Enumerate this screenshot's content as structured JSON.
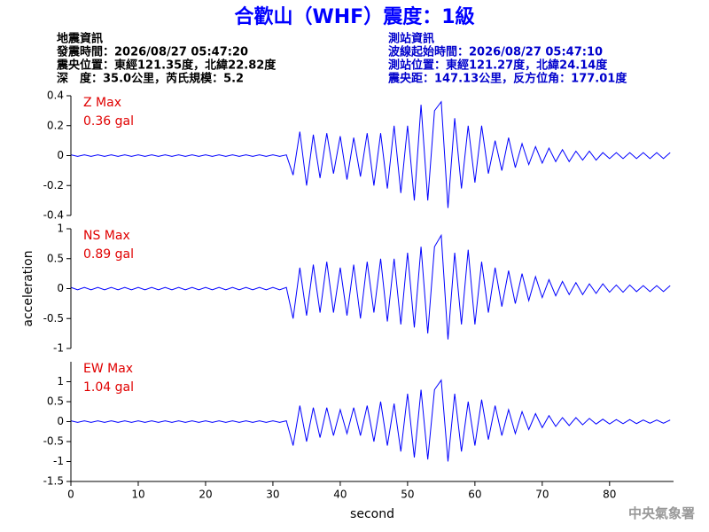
{
  "header": {
    "title": "合歡山（WHF）震度：1級",
    "left_info": [
      "地震資訊",
      "發震時間：2026/08/27 05:47:20",
      "震央位置：東經121.35度，北緯22.82度",
      "深　度：35.0公里，芮氏規模：5.2"
    ],
    "right_info": [
      "測站資訊",
      "波線起始時間：2026/08/27 05:47:10",
      "測站位置：東經121.27度，北緯24.14度",
      "震央距：147.13公里，反方位角：177.01度"
    ]
  },
  "footer": "中央氣象署",
  "chart_data": [
    {
      "type": "line",
      "annotations": [
        "Z Max",
        "0.36 gal"
      ],
      "color": "#0000ff",
      "xlim": [
        0,
        89.5
      ],
      "ylim": [
        -0.4,
        0.4
      ],
      "yticks": [
        -0.4,
        -0.2,
        0,
        0.2,
        0.4
      ],
      "x": [
        0,
        1,
        2,
        3,
        4,
        5,
        6,
        7,
        8,
        9,
        10,
        11,
        12,
        13,
        14,
        15,
        16,
        17,
        18,
        19,
        20,
        21,
        22,
        23,
        24,
        25,
        26,
        27,
        28,
        29,
        30,
        31,
        32,
        33,
        34,
        35,
        36,
        37,
        38,
        39,
        40,
        41,
        42,
        43,
        44,
        45,
        46,
        47,
        48,
        49,
        50,
        51,
        52,
        53,
        54,
        55,
        56,
        57,
        58,
        59,
        60,
        61,
        62,
        63,
        64,
        65,
        66,
        67,
        68,
        69,
        70,
        71,
        72,
        73,
        74,
        75,
        76,
        77,
        78,
        79,
        80,
        81,
        82,
        83,
        84,
        85,
        86,
        87,
        88,
        89
      ],
      "values": [
        0.005,
        -0.005,
        0.005,
        -0.005,
        0.005,
        -0.005,
        0.005,
        -0.005,
        0.005,
        -0.005,
        0.005,
        -0.005,
        0.005,
        -0.005,
        0.005,
        -0.005,
        0.005,
        -0.005,
        0.005,
        -0.005,
        0.005,
        -0.005,
        0.005,
        -0.005,
        0.005,
        -0.005,
        0.005,
        -0.005,
        0.005,
        -0.005,
        0.005,
        -0.005,
        0.005,
        -0.13,
        0.16,
        -0.2,
        0.14,
        -0.15,
        0.15,
        -0.12,
        0.13,
        -0.16,
        0.12,
        -0.14,
        0.15,
        -0.2,
        0.15,
        -0.22,
        0.2,
        -0.25,
        0.2,
        -0.3,
        0.34,
        -0.3,
        0.3,
        0.36,
        -0.35,
        0.25,
        -0.22,
        0.2,
        -0.18,
        0.2,
        -0.12,
        0.1,
        -0.1,
        0.12,
        -0.08,
        0.08,
        -0.06,
        0.06,
        -0.05,
        0.05,
        -0.04,
        0.04,
        -0.04,
        0.03,
        -0.03,
        0.03,
        -0.03,
        0.02,
        -0.02,
        0.02,
        -0.02,
        0.02,
        -0.02,
        0.02,
        -0.02,
        0.02,
        -0.02,
        0.02
      ]
    },
    {
      "type": "line",
      "annotations": [
        "NS Max",
        "0.89 gal"
      ],
      "color": "#0000ff",
      "ylabel": "acceleration",
      "xlim": [
        0,
        89.5
      ],
      "ylim": [
        -1,
        1
      ],
      "yticks": [
        -1,
        -0.5,
        0,
        0.5,
        1
      ],
      "x": [
        0,
        1,
        2,
        3,
        4,
        5,
        6,
        7,
        8,
        9,
        10,
        11,
        12,
        13,
        14,
        15,
        16,
        17,
        18,
        19,
        20,
        21,
        22,
        23,
        24,
        25,
        26,
        27,
        28,
        29,
        30,
        31,
        32,
        33,
        34,
        35,
        36,
        37,
        38,
        39,
        40,
        41,
        42,
        43,
        44,
        45,
        46,
        47,
        48,
        49,
        50,
        51,
        52,
        53,
        54,
        55,
        56,
        57,
        58,
        59,
        60,
        61,
        62,
        63,
        64,
        65,
        66,
        67,
        68,
        69,
        70,
        71,
        72,
        73,
        74,
        75,
        76,
        77,
        78,
        79,
        80,
        81,
        82,
        83,
        84,
        85,
        86,
        87,
        88,
        89
      ],
      "values": [
        0.02,
        -0.02,
        0.02,
        -0.02,
        0.02,
        -0.02,
        0.02,
        -0.02,
        0.02,
        -0.02,
        0.02,
        -0.02,
        0.02,
        -0.02,
        0.02,
        -0.02,
        0.02,
        -0.02,
        0.02,
        -0.02,
        0.02,
        -0.02,
        0.02,
        -0.02,
        0.02,
        -0.02,
        0.02,
        -0.02,
        0.02,
        -0.02,
        0.02,
        -0.02,
        0.02,
        -0.5,
        0.35,
        -0.45,
        0.4,
        -0.4,
        0.45,
        -0.4,
        0.35,
        -0.45,
        0.4,
        -0.5,
        0.45,
        -0.4,
        0.5,
        -0.55,
        0.5,
        -0.6,
        0.6,
        -0.65,
        0.7,
        -0.75,
        0.7,
        0.89,
        -0.85,
        0.6,
        -0.6,
        0.65,
        -0.6,
        0.45,
        -0.4,
        0.35,
        -0.3,
        0.3,
        -0.25,
        0.25,
        -0.2,
        0.2,
        -0.15,
        0.15,
        -0.12,
        0.12,
        -0.1,
        0.1,
        -0.1,
        0.08,
        -0.08,
        0.08,
        -0.06,
        0.06,
        -0.06,
        0.06,
        -0.05,
        0.05,
        -0.05,
        0.05,
        -0.05,
        0.05
      ]
    },
    {
      "type": "line",
      "annotations": [
        "EW Max",
        "1.04 gal"
      ],
      "color": "#0000ff",
      "xlabel": "second",
      "xlim": [
        0,
        89.5
      ],
      "ylim": [
        -1.5,
        1.5
      ],
      "yticks": [
        -1.5,
        -1,
        -0.5,
        0,
        0.5,
        1
      ],
      "xticks": [
        0,
        10,
        20,
        30,
        40,
        50,
        60,
        70,
        80
      ],
      "x": [
        0,
        1,
        2,
        3,
        4,
        5,
        6,
        7,
        8,
        9,
        10,
        11,
        12,
        13,
        14,
        15,
        16,
        17,
        18,
        19,
        20,
        21,
        22,
        23,
        24,
        25,
        26,
        27,
        28,
        29,
        30,
        31,
        32,
        33,
        34,
        35,
        36,
        37,
        38,
        39,
        40,
        41,
        42,
        43,
        44,
        45,
        46,
        47,
        48,
        49,
        50,
        51,
        52,
        53,
        54,
        55,
        56,
        57,
        58,
        59,
        60,
        61,
        62,
        63,
        64,
        65,
        66,
        67,
        68,
        69,
        70,
        71,
        72,
        73,
        74,
        75,
        76,
        77,
        78,
        79,
        80,
        81,
        82,
        83,
        84,
        85,
        86,
        87,
        88,
        89
      ],
      "values": [
        0.02,
        -0.02,
        0.02,
        -0.02,
        0.02,
        -0.02,
        0.02,
        -0.02,
        0.02,
        -0.02,
        0.02,
        -0.02,
        0.02,
        -0.02,
        0.02,
        -0.02,
        0.02,
        -0.02,
        0.02,
        -0.02,
        0.02,
        -0.02,
        0.02,
        -0.02,
        0.02,
        -0.02,
        0.02,
        -0.02,
        0.02,
        -0.02,
        0.02,
        -0.02,
        0.02,
        -0.6,
        0.4,
        -0.5,
        0.35,
        -0.4,
        0.35,
        -0.35,
        0.3,
        -0.3,
        0.35,
        -0.35,
        0.4,
        -0.5,
        0.5,
        -0.6,
        0.45,
        -0.75,
        0.7,
        -0.9,
        0.8,
        -0.95,
        0.8,
        1.04,
        -1.0,
        0.7,
        -0.75,
        0.5,
        -0.6,
        0.55,
        -0.45,
        0.4,
        -0.35,
        0.3,
        -0.3,
        0.25,
        -0.2,
        0.2,
        -0.15,
        0.15,
        -0.12,
        0.1,
        -0.1,
        0.1,
        -0.08,
        0.08,
        -0.06,
        0.06,
        -0.06,
        0.05,
        -0.05,
        0.05,
        -0.05,
        0.04,
        -0.04,
        0.04,
        -0.04,
        0.04
      ]
    }
  ]
}
